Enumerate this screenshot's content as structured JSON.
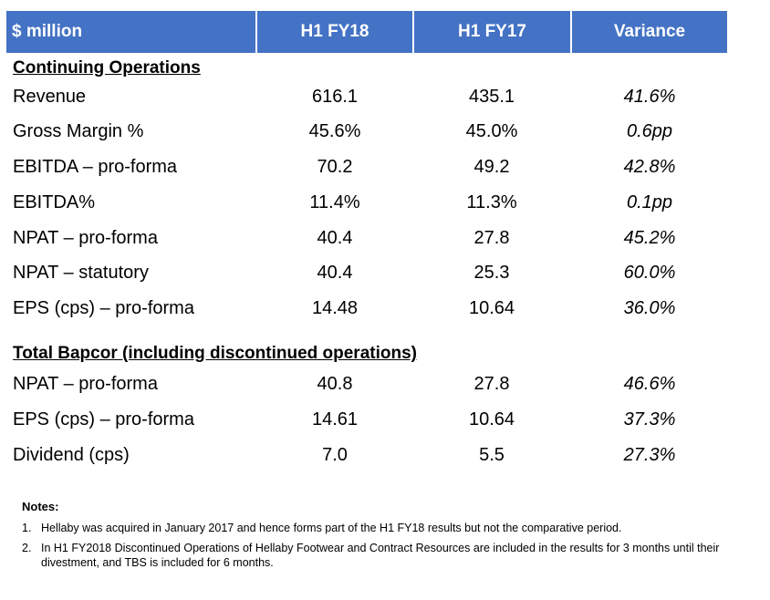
{
  "header": {
    "label": "$ million",
    "col1": "H1 FY18",
    "col2": "H1 FY17",
    "col3": "Variance",
    "fill_color": "#4472c4"
  },
  "continuing": {
    "title": "Continuing Operations",
    "rows": [
      {
        "label": "Revenue",
        "h1fy18": "616.1",
        "h1fy17": "435.1",
        "variance": "41.6%"
      },
      {
        "label": "Gross Margin %",
        "h1fy18": "45.6%",
        "h1fy17": "45.0%",
        "variance": "0.6pp"
      },
      {
        "label": "EBITDA – pro-forma",
        "h1fy18": "70.2",
        "h1fy17": "49.2",
        "variance": "42.8%"
      },
      {
        "label": "EBITDA%",
        "h1fy18": "11.4%",
        "h1fy17": "11.3%",
        "variance": "0.1pp"
      },
      {
        "label": "NPAT – pro-forma",
        "h1fy18": "40.4",
        "h1fy17": "27.8",
        "variance": "45.2%"
      },
      {
        "label": "NPAT – statutory",
        "h1fy18": "40.4",
        "h1fy17": "25.3",
        "variance": "60.0%"
      },
      {
        "label": "EPS (cps) – pro-forma",
        "h1fy18": "14.48",
        "h1fy17": "10.64",
        "variance": "36.0%"
      }
    ]
  },
  "total": {
    "title": "Total Bapcor (including discontinued operations)",
    "rows": [
      {
        "label": "NPAT – pro-forma",
        "h1fy18": "40.8",
        "h1fy17": "27.8",
        "variance": "46.6%"
      },
      {
        "label": "EPS (cps) – pro-forma",
        "h1fy18": "14.61",
        "h1fy17": "10.64",
        "variance": "37.3%"
      },
      {
        "label": "Dividend (cps)",
        "h1fy18": "7.0",
        "h1fy17": "5.5",
        "variance": "27.3%"
      }
    ]
  },
  "notes": {
    "title": "Notes:",
    "items": [
      {
        "num": "1.",
        "text": "Hellaby was acquired in January 2017 and hence forms part of the H1 FY18 results but not the comparative period."
      },
      {
        "num": "2.",
        "text": "In H1 FY2018 Discontinued Operations of Hellaby Footwear and Contract Resources are included in the results for 3 months until their divestment, and TBS is included for 6 months."
      }
    ]
  }
}
